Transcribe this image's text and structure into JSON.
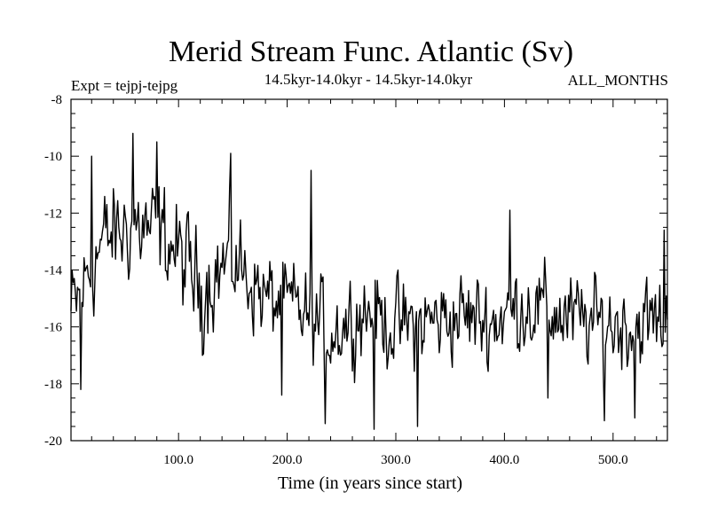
{
  "chart_data": {
    "type": "line",
    "title": "Merid Stream Func. Atlantic (Sv)",
    "subtitle": "14.5kyr-14.0kyr - 14.5kyr-14.0kyr",
    "left_label": "Expt = tejpj-tejpg",
    "right_label": "ALL_MONTHS",
    "xlabel": "Time (in years since start)",
    "ylabel": "",
    "xlim": [
      1,
      550
    ],
    "ylim": [
      -20,
      -8
    ],
    "x_ticks": [
      100,
      200,
      300,
      400,
      500
    ],
    "x_tick_labels": [
      "100.0",
      "200.0",
      "300.0",
      "400.0",
      "500.0"
    ],
    "y_ticks": [
      -20,
      -18,
      -16,
      -14,
      -12,
      -10,
      -8
    ],
    "y_tick_labels": [
      "-20",
      "-18",
      "-16",
      "-14",
      "-12",
      "-10",
      "-8"
    ],
    "grid": false,
    "series": [
      {
        "name": "Merid Stream Func. Atlantic",
        "color": "#000000",
        "trend_anchors": [
          [
            1,
            -15.6
          ],
          [
            30,
            -13.0
          ],
          [
            60,
            -12.4
          ],
          [
            90,
            -12.9
          ],
          [
            120,
            -14.6
          ],
          [
            150,
            -13.6
          ],
          [
            180,
            -15.0
          ],
          [
            210,
            -15.4
          ],
          [
            240,
            -16.2
          ],
          [
            270,
            -15.4
          ],
          [
            300,
            -16.0
          ],
          [
            330,
            -15.8
          ],
          [
            360,
            -15.6
          ],
          [
            390,
            -15.8
          ],
          [
            420,
            -15.2
          ],
          [
            450,
            -15.6
          ],
          [
            480,
            -15.9
          ],
          [
            510,
            -15.9
          ],
          [
            550,
            -15.8
          ]
        ],
        "features": [
          {
            "year": 10,
            "value": -18.2
          },
          {
            "year": 20,
            "value": -10.0
          },
          {
            "year": 58,
            "value": -9.2
          },
          {
            "year": 80,
            "value": -9.5
          },
          {
            "year": 122,
            "value": -17.0
          },
          {
            "year": 148,
            "value": -9.9
          },
          {
            "year": 195,
            "value": -18.4
          },
          {
            "year": 222,
            "value": -10.5
          },
          {
            "year": 235,
            "value": -19.4
          },
          {
            "year": 280,
            "value": -19.6
          },
          {
            "year": 320,
            "value": -19.5
          },
          {
            "year": 405,
            "value": -11.9
          },
          {
            "year": 440,
            "value": -18.5
          },
          {
            "year": 492,
            "value": -19.3
          },
          {
            "year": 520,
            "value": -19.2
          },
          {
            "year": 547,
            "value": -12.6
          }
        ]
      }
    ]
  }
}
